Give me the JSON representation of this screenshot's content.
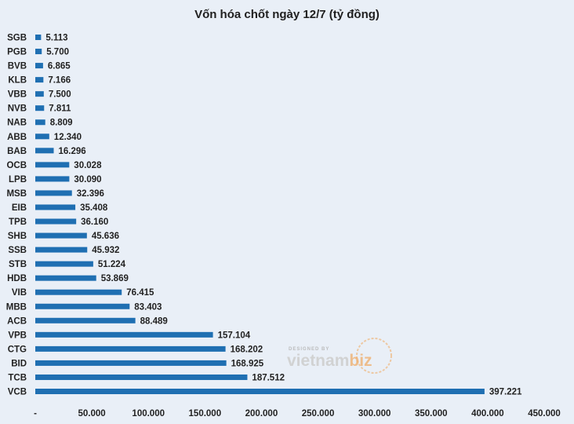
{
  "chart_data": {
    "type": "bar",
    "orientation": "horizontal",
    "title": "Vốn hóa chốt ngày 12/7 (tỷ đồng)",
    "categories": [
      "SGB",
      "PGB",
      "BVB",
      "KLB",
      "VBB",
      "NVB",
      "NAB",
      "ABB",
      "BAB",
      "OCB",
      "LPB",
      "MSB",
      "EIB",
      "TPB",
      "SHB",
      "SSB",
      "STB",
      "HDB",
      "VIB",
      "MBB",
      "ACB",
      "VPB",
      "CTG",
      "BID",
      "TCB",
      "VCB"
    ],
    "values": [
      5113,
      5700,
      6865,
      7166,
      7500,
      7811,
      8809,
      12340,
      16296,
      30028,
      30090,
      32396,
      35408,
      36160,
      45636,
      45932,
      51224,
      53869,
      76415,
      83403,
      88489,
      157104,
      168202,
      168925,
      187512,
      397221
    ],
    "value_labels": [
      "5.113",
      "5.700",
      "6.865",
      "7.166",
      "7.500",
      "7.811",
      "8.809",
      "12.340",
      "16.296",
      "30.028",
      "30.090",
      "32.396",
      "35.408",
      "36.160",
      "45.636",
      "45.932",
      "51.224",
      "53.869",
      "76.415",
      "83.403",
      "88.489",
      "157.104",
      "168.202",
      "168.925",
      "187.512",
      "397.221"
    ],
    "xlim": [
      0,
      450000
    ],
    "x_ticks": [
      0,
      50000,
      100000,
      150000,
      200000,
      250000,
      300000,
      350000,
      400000,
      450000
    ],
    "x_tick_labels": [
      "-",
      "50.000",
      "100.000",
      "150.000",
      "200.000",
      "250.000",
      "300.000",
      "350.000",
      "400.000",
      "450.000"
    ],
    "bar_color": "#1f6fb2",
    "grid": false,
    "legend": "none"
  },
  "watermark": {
    "small": "DESIGNED BY",
    "brand_a": "vietnam",
    "brand_b": "biz",
    "accent_color": "#f0a65a"
  }
}
